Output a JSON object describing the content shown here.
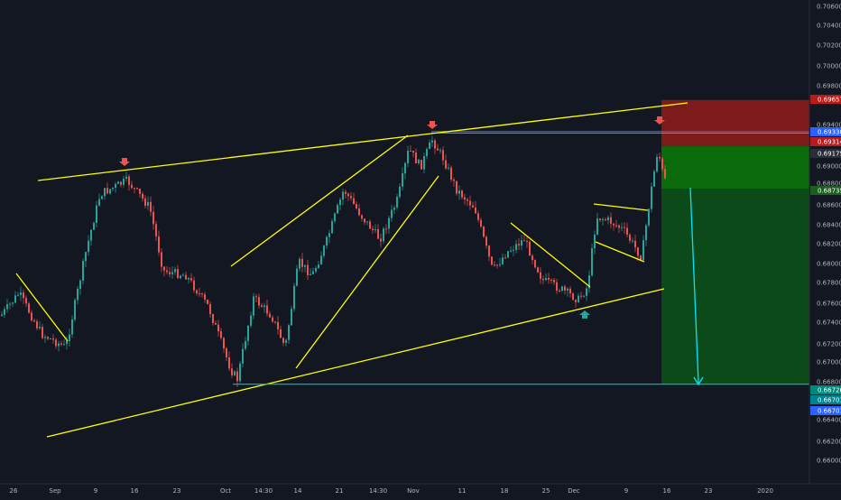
{
  "theme": {
    "background": "#131722",
    "grid": "#1f2330",
    "up_candle": "#26a69a",
    "down_candle": "#ef5350",
    "trendline": "#ffff00",
    "level_line": "#00bcd4",
    "arrow_projection": "#00e5ff",
    "stop_zone": "#7d1b1b",
    "target_zone": "#0b6b0b",
    "target_zone_extended": "#0d4a1a",
    "entry_line": "#2962ff",
    "marker_down": "#ef5350",
    "marker_up": "#26a69a"
  },
  "chart_data": {
    "type": "candlestick",
    "title": "",
    "xlabel": "",
    "ylabel": "",
    "x_tick_labels": [
      "26",
      "Sep",
      "9",
      "16",
      "23",
      "Oct",
      "14:30",
      "14",
      "21",
      "14:30",
      "Nov",
      "11",
      "18",
      "25",
      "Dec",
      "9",
      "16",
      "23",
      "2020"
    ],
    "y_tick_labels": [
      "0.70600",
      "0.70400",
      "0.70200",
      "0.70000",
      "0.69800",
      "0.69400",
      "0.69000",
      "0.68800",
      "0.68600",
      "0.68400",
      "0.68200",
      "0.68000",
      "0.67800",
      "0.67600",
      "0.67400",
      "0.67200",
      "0.67000",
      "0.66800",
      "0.66400",
      "0.66200",
      "0.66000"
    ],
    "ylim": [
      0.659,
      0.7065
    ],
    "grid": false,
    "legend": "none",
    "price_labels": [
      {
        "value": "0.69657",
        "price": 0.69657,
        "color": "#b71c1c"
      },
      {
        "value": "0.69330",
        "price": 0.6933,
        "color": "#2962ff"
      },
      {
        "value": "0.69314",
        "price": 0.69314,
        "color": "#b71c1c"
      },
      {
        "value": "0.69175",
        "price": 0.69175,
        "color": "#2a2e39"
      },
      {
        "value": "0.68735",
        "price": 0.68735,
        "color": "#1b5e20"
      },
      {
        "value": "0.66726",
        "price": 0.66726,
        "color": "#00897b"
      },
      {
        "value": "0.66701",
        "price": 0.66701,
        "color": "#00838f"
      },
      {
        "value": "0.66701",
        "price": 0.66701,
        "color": "#2962ff"
      }
    ],
    "trade": {
      "entry": 0.69175,
      "stop": 0.69657,
      "target": 0.66701,
      "zone1_bottom": 0.68735
    },
    "support_level": 0.66701
  }
}
